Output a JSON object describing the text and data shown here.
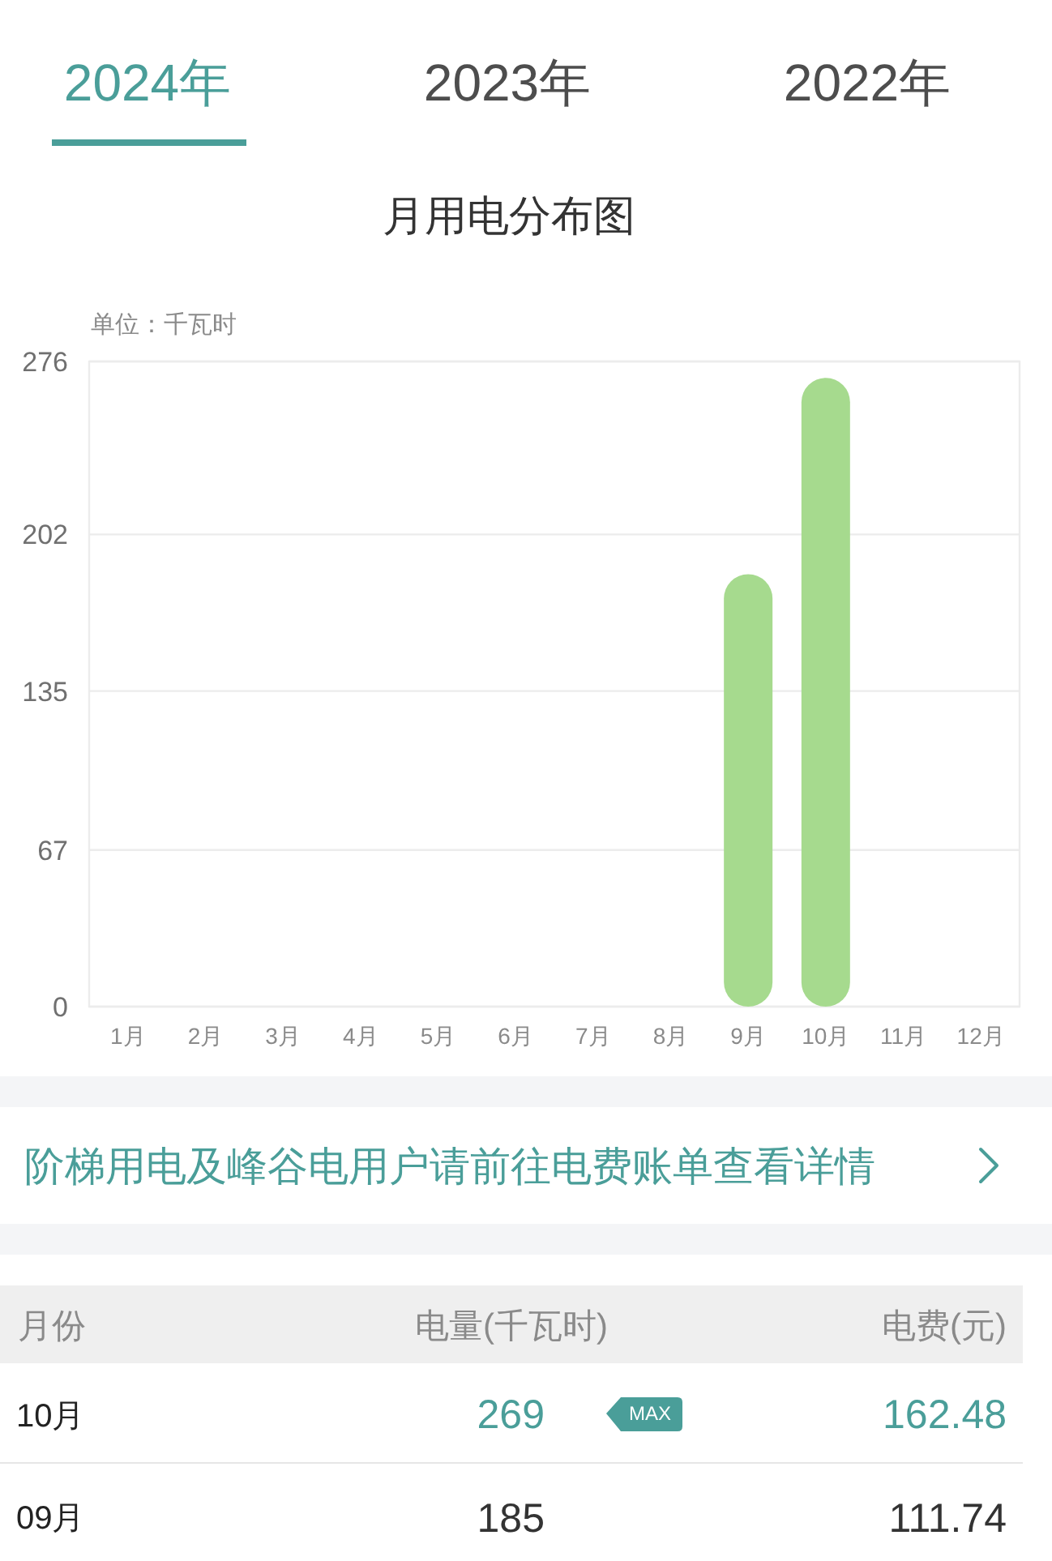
{
  "chart_data": {
    "type": "bar",
    "title": "月用电分布图",
    "ylabel": "单位：千瓦时",
    "categories": [
      "1月",
      "2月",
      "3月",
      "4月",
      "5月",
      "6月",
      "7月",
      "8月",
      "9月",
      "10月",
      "11月",
      "12月"
    ],
    "values": [
      null,
      null,
      null,
      null,
      null,
      null,
      null,
      null,
      185,
      269,
      null,
      null
    ],
    "color": "#a6da8e",
    "ylim": [
      0,
      276
    ],
    "yticks": [
      0,
      67,
      135,
      202,
      276
    ],
    "grid": "y",
    "annotations": [
      "2024年",
      "2023年",
      "2022年",
      "阶梯用电及峰谷电用户请前往电费账单查看详情",
      "月份",
      "电量(千瓦时)",
      "电费(元)",
      "10月",
      "269",
      "MAX",
      "162.48",
      "09月",
      "185",
      "111.74"
    ]
  }
}
